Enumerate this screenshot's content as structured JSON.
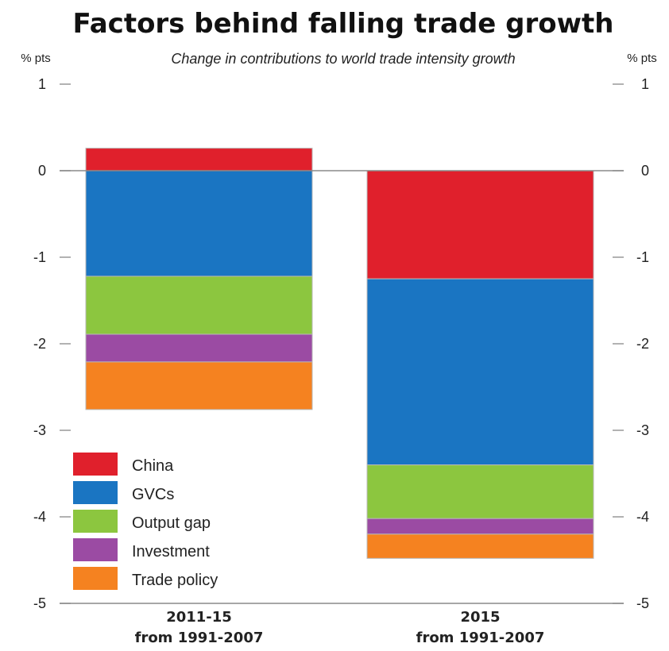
{
  "chart_data": {
    "type": "bar",
    "stacked": true,
    "title": "Factors behind falling trade growth",
    "subtitle": "Change in contributions to world trade intensity growth",
    "ylabel_left": "% pts",
    "ylabel_right": "% pts",
    "ylim": [
      -5,
      1
    ],
    "yticks": [
      1,
      0,
      -1,
      -2,
      -3,
      -4,
      -5
    ],
    "categories": [
      {
        "line1": "2011-15",
        "line2": "from 1991-2007"
      },
      {
        "line1": "2015",
        "line2": "from 1991-2007"
      }
    ],
    "series": [
      {
        "name": "China",
        "color": "#e0202c",
        "values": [
          0.26,
          -1.25
        ]
      },
      {
        "name": "GVCs",
        "color": "#1a75c2",
        "values": [
          -1.22,
          -2.15
        ]
      },
      {
        "name": "Output gap",
        "color": "#8cc63f",
        "values": [
          -0.67,
          -0.62
        ]
      },
      {
        "name": "Investment",
        "color": "#9b4ba3",
        "values": [
          -0.32,
          -0.18
        ]
      },
      {
        "name": "Trade policy",
        "color": "#f58220",
        "values": [
          -0.55,
          -0.28
        ]
      }
    ],
    "legend_position": "bottom-left",
    "grid": false,
    "zero_line": true
  }
}
